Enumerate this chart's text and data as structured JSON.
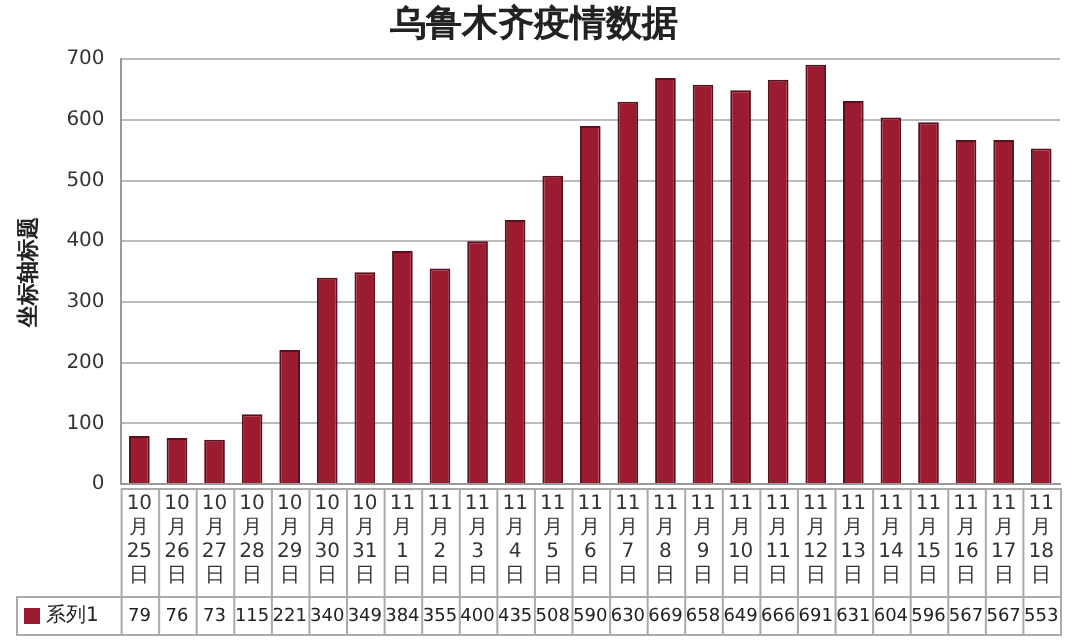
{
  "chart_data": {
    "type": "bar",
    "title": "乌鲁木齐疫情数据",
    "ylabel": "坐标轴标题",
    "categories": [
      "10月25日",
      "10月26日",
      "10月27日",
      "10月28日",
      "10月29日",
      "10月30日",
      "10月31日",
      "11月1日",
      "11月2日",
      "11月3日",
      "11月4日",
      "11月5日",
      "11月6日",
      "11月7日",
      "11月8日",
      "11月9日",
      "11月10日",
      "11月11日",
      "11月12日",
      "11月13日",
      "11月14日",
      "11月15日",
      "11月16日",
      "11月17日",
      "11月18日"
    ],
    "series": [
      {
        "name": "系列1",
        "color": "#9b1b30",
        "values": [
          79,
          76,
          73,
          115,
          221,
          340,
          349,
          384,
          355,
          400,
          435,
          508,
          590,
          630,
          669,
          658,
          649,
          666,
          691,
          631,
          604,
          596,
          567,
          567,
          553
        ]
      }
    ],
    "ylim": [
      0,
      700
    ],
    "yticks": [
      0,
      100,
      200,
      300,
      400,
      500,
      600,
      700
    ],
    "grid": "y",
    "legend": "bottom",
    "data_labels": true
  }
}
